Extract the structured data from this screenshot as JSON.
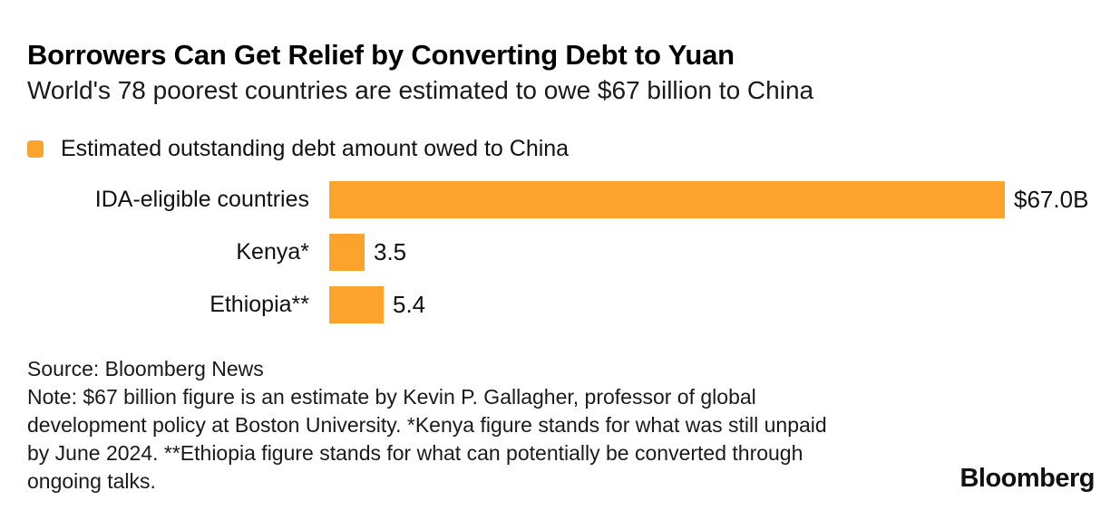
{
  "chart_data": {
    "type": "bar",
    "orientation": "horizontal",
    "title": "Borrowers Can Get Relief by Converting Debt to Yuan",
    "subtitle": "World's 78 poorest countries are estimated to owe $67 billion to China",
    "legend": [
      "Estimated outstanding debt amount owed to China"
    ],
    "legend_position": "top-left",
    "categories": [
      "IDA-eligible countries",
      "Kenya*",
      "Ethiopia**"
    ],
    "values": [
      67.0,
      3.5,
      5.4
    ],
    "value_labels": [
      "$67.0B",
      "3.5",
      "5.4"
    ],
    "xlim": [
      0,
      67
    ],
    "grid": false,
    "bar_color": "#FBA32C"
  },
  "footer": {
    "source": "Source: Bloomberg News",
    "note_lines": [
      "Note: $67 billion figure is an estimate by Kevin P. Gallagher, professor of global",
      "development policy at Boston University. *Kenya figure stands for what was still unpaid",
      "by June 2024. **Ethiopia figure stands for what can potentially be converted through",
      "ongoing talks."
    ],
    "brand": "Bloomberg"
  }
}
